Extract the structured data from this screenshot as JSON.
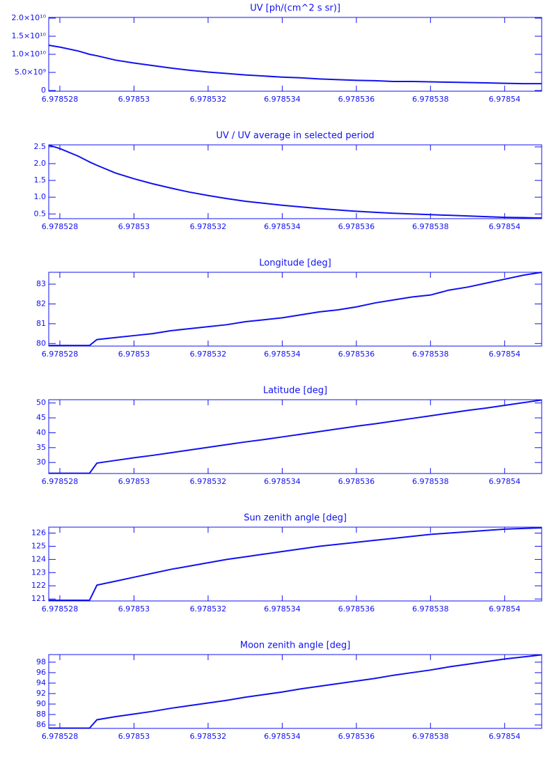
{
  "chart_data": [
    {
      "type": "line",
      "title": "UV [ph/(cm^2 s sr)]",
      "color": "#1010f0",
      "grid": false,
      "x": [
        6.9785277,
        6.978528,
        6.9785285,
        6.9785288,
        6.978529,
        6.9785295,
        6.97853,
        6.9785305,
        6.978531,
        6.9785315,
        6.978532,
        6.9785325,
        6.978533,
        6.9785335,
        6.978534,
        6.9785345,
        6.978535,
        6.9785355,
        6.978536,
        6.9785365,
        6.978537,
        6.9785375,
        6.978538,
        6.9785385,
        6.978539,
        6.9785395,
        6.97854,
        6.9785405,
        6.978541
      ],
      "values": [
        12500000000,
        12000000000,
        10900000000,
        10000000000,
        9600000000,
        8400000000,
        7600000000,
        6900000000,
        6200000000,
        5600000000,
        5100000000,
        4700000000,
        4300000000,
        4000000000,
        3700000000,
        3500000000,
        3200000000,
        3000000000,
        2800000000,
        2700000000,
        2500000000,
        2500000000,
        2400000000,
        2300000000,
        2200000000,
        2100000000,
        2000000000,
        1900000000,
        1900000000
      ],
      "xlim": [
        6.9785277,
        6.978541
      ],
      "xticks": [
        6.978528,
        6.97853,
        6.978532,
        6.978534,
        6.978536,
        6.978538,
        6.97854
      ],
      "ylim": [
        -200000000,
        20200000000
      ],
      "yticks": [
        0,
        {
          "value": 5000000000,
          "label": "5.0×10⁹"
        },
        {
          "value": 10000000000,
          "label": "1.0×10¹⁰"
        },
        {
          "value": 15000000000,
          "label": "1.5×10¹⁰"
        },
        {
          "value": 20000000000,
          "label": "2.0×10¹⁰"
        }
      ]
    },
    {
      "type": "line",
      "title": "UV / UV average in selected period",
      "color": "#1010f0",
      "grid": false,
      "x": [
        6.9785277,
        6.978528,
        6.9785285,
        6.9785288,
        6.978529,
        6.9785295,
        6.97853,
        6.9785305,
        6.978531,
        6.9785315,
        6.978532,
        6.9785325,
        6.978533,
        6.9785335,
        6.978534,
        6.9785345,
        6.978535,
        6.9785355,
        6.978536,
        6.9785365,
        6.978537,
        6.9785375,
        6.978538,
        6.9785385,
        6.978539,
        6.9785395,
        6.97854,
        6.9785405,
        6.978541
      ],
      "values": [
        2.55,
        2.45,
        2.22,
        2.05,
        1.95,
        1.72,
        1.55,
        1.4,
        1.27,
        1.15,
        1.05,
        0.96,
        0.88,
        0.82,
        0.76,
        0.71,
        0.66,
        0.62,
        0.58,
        0.55,
        0.52,
        0.5,
        0.48,
        0.46,
        0.44,
        0.42,
        0.4,
        0.39,
        0.38
      ],
      "xlim": [
        6.9785277,
        6.978541
      ],
      "xticks": [
        6.978528,
        6.97853,
        6.978532,
        6.978534,
        6.978536,
        6.978538,
        6.97854
      ],
      "ylim": [
        0.36,
        2.56
      ],
      "yticks": [
        {
          "value": 0.5,
          "label": "0.5"
        },
        {
          "value": 1,
          "label": "1.0"
        },
        {
          "value": 1.5,
          "label": "1.5"
        },
        {
          "value": 2,
          "label": "2.0"
        },
        {
          "value": 2.5,
          "label": "2.5"
        }
      ]
    },
    {
      "type": "line",
      "title": "Longitude [deg]",
      "color": "#1010f0",
      "grid": false,
      "x": [
        6.9785277,
        6.978528,
        6.9785285,
        6.9785288,
        6.978529,
        6.9785295,
        6.97853,
        6.9785305,
        6.978531,
        6.9785315,
        6.978532,
        6.9785325,
        6.978533,
        6.9785335,
        6.978534,
        6.9785345,
        6.978535,
        6.9785355,
        6.978536,
        6.9785365,
        6.978537,
        6.9785375,
        6.978538,
        6.9785385,
        6.978539,
        6.9785395,
        6.97854,
        6.9785405,
        6.978541
      ],
      "values": [
        79.9,
        79.9,
        79.9,
        79.9,
        80.2,
        80.3,
        80.4,
        80.5,
        80.65,
        80.75,
        80.85,
        80.95,
        81.1,
        81.2,
        81.3,
        81.45,
        81.6,
        81.7,
        81.85,
        82.05,
        82.2,
        82.35,
        82.45,
        82.7,
        82.85,
        83.05,
        83.25,
        83.45,
        83.6
      ],
      "xlim": [
        6.9785277,
        6.978541
      ],
      "xticks": [
        6.978528,
        6.97853,
        6.978532,
        6.978534,
        6.978536,
        6.978538,
        6.97854
      ],
      "ylim": [
        79.87,
        83.6
      ],
      "yticks": [
        80,
        81,
        82,
        83
      ]
    },
    {
      "type": "line",
      "title": "Latitude [deg]",
      "color": "#1010f0",
      "grid": false,
      "x": [
        6.9785277,
        6.978528,
        6.9785285,
        6.9785288,
        6.978529,
        6.9785295,
        6.97853,
        6.9785305,
        6.978531,
        6.9785315,
        6.978532,
        6.9785325,
        6.978533,
        6.9785335,
        6.978534,
        6.9785345,
        6.978535,
        6.9785355,
        6.978536,
        6.9785365,
        6.978537,
        6.9785375,
        6.978538,
        6.9785385,
        6.978539,
        6.9785395,
        6.97854,
        6.9785405,
        6.978541
      ],
      "values": [
        26.4,
        26.4,
        26.4,
        26.4,
        29.8,
        30.7,
        31.6,
        32.4,
        33.3,
        34.2,
        35.1,
        36.0,
        36.9,
        37.7,
        38.6,
        39.5,
        40.4,
        41.3,
        42.2,
        43.0,
        43.9,
        44.8,
        45.7,
        46.6,
        47.5,
        48.3,
        49.2,
        50.1,
        51.0
      ],
      "xlim": [
        6.9785277,
        6.978541
      ],
      "xticks": [
        6.978528,
        6.97853,
        6.978532,
        6.978534,
        6.978536,
        6.978538,
        6.97854
      ],
      "ylim": [
        26.3,
        51.1
      ],
      "yticks": [
        30,
        35,
        40,
        45,
        50
      ]
    },
    {
      "type": "line",
      "title": "Sun zenith angle [deg]",
      "color": "#1010f0",
      "grid": false,
      "x": [
        6.9785277,
        6.978528,
        6.9785285,
        6.9785288,
        6.978529,
        6.9785295,
        6.97853,
        6.9785305,
        6.978531,
        6.9785315,
        6.978532,
        6.9785325,
        6.978533,
        6.9785335,
        6.978534,
        6.9785345,
        6.978535,
        6.9785355,
        6.978536,
        6.9785365,
        6.978537,
        6.9785375,
        6.978538,
        6.9785385,
        6.978539,
        6.9785395,
        6.97854,
        6.9785405,
        6.978541
      ],
      "values": [
        120.9,
        120.9,
        120.9,
        120.9,
        122.05,
        122.35,
        122.65,
        122.95,
        123.25,
        123.5,
        123.75,
        124.0,
        124.2,
        124.4,
        124.6,
        124.8,
        125.0,
        125.15,
        125.3,
        125.45,
        125.6,
        125.75,
        125.9,
        126.0,
        126.1,
        126.2,
        126.3,
        126.35,
        126.4
      ],
      "xlim": [
        6.9785277,
        6.978541
      ],
      "xticks": [
        6.978528,
        6.97853,
        6.978532,
        6.978534,
        6.978536,
        6.978538,
        6.97854
      ],
      "ylim": [
        120.85,
        126.45
      ],
      "yticks": [
        121,
        122,
        123,
        124,
        125,
        126
      ]
    },
    {
      "type": "line",
      "title": "Moon zenith angle [deg]",
      "color": "#1010f0",
      "grid": false,
      "x": [
        6.9785277,
        6.978528,
        6.9785285,
        6.9785288,
        6.978529,
        6.9785295,
        6.97853,
        6.9785305,
        6.978531,
        6.9785315,
        6.978532,
        6.9785325,
        6.978533,
        6.9785335,
        6.978534,
        6.9785345,
        6.978535,
        6.9785355,
        6.978536,
        6.9785365,
        6.978537,
        6.9785375,
        6.978538,
        6.9785385,
        6.978539,
        6.9785395,
        6.97854,
        6.9785405,
        6.978541
      ],
      "values": [
        85.4,
        85.4,
        85.4,
        85.4,
        87.0,
        87.6,
        88.1,
        88.6,
        89.2,
        89.7,
        90.2,
        90.7,
        91.3,
        91.8,
        92.3,
        92.9,
        93.4,
        93.9,
        94.4,
        94.9,
        95.5,
        96.0,
        96.5,
        97.1,
        97.6,
        98.1,
        98.6,
        99.0,
        99.4
      ],
      "xlim": [
        6.9785277,
        6.978541
      ],
      "xticks": [
        6.978528,
        6.97853,
        6.978532,
        6.978534,
        6.978536,
        6.978538,
        6.97854
      ],
      "ylim": [
        85.35,
        99.45
      ],
      "yticks": [
        86,
        88,
        90,
        92,
        94,
        96,
        98
      ]
    }
  ]
}
